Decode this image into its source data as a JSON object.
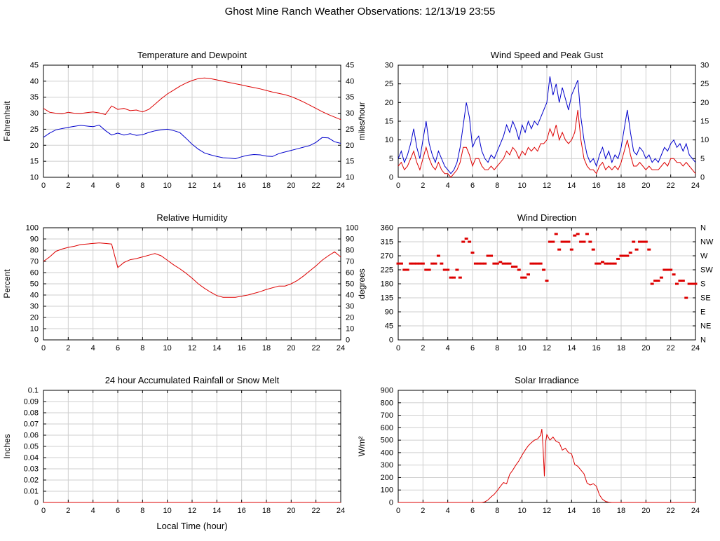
{
  "title": "Ghost Mine Ranch Weather Observations: 12/13/19 23:55",
  "colors": {
    "red": "#dd0000",
    "blue": "#0000cc",
    "grid": "#cfcfcf",
    "axis": "#000000"
  },
  "chart_data": [
    {
      "id": "temperature-dewpoint",
      "type": "line",
      "title": "Temperature and Dewpoint",
      "ylabel": "Fahrenheit",
      "ylim": [
        10,
        45
      ],
      "ytick": 5,
      "xlim": [
        0,
        24
      ],
      "xtick": 2,
      "mirror_right": true,
      "series": [
        {
          "name": "Temperature",
          "color": "red",
          "x_start": 0,
          "x_step": 0.5,
          "values": [
            31.5,
            30.3,
            30,
            29.8,
            30.3,
            30,
            29.9,
            30.2,
            30.4,
            30.1,
            29.6,
            32.3,
            31.2,
            31.5,
            30.8,
            31,
            30.4,
            31.2,
            32.8,
            34.5,
            36,
            37.2,
            38.4,
            39.4,
            40.2,
            40.8,
            41,
            40.8,
            40.4,
            40,
            39.6,
            39.2,
            38.8,
            38.4,
            38,
            37.6,
            37.1,
            36.6,
            36.2,
            35.8,
            35.2,
            34.4,
            33.5,
            32.5,
            31.5,
            30.5,
            29.6,
            28.8,
            28
          ]
        },
        {
          "name": "Dewpoint",
          "color": "blue",
          "x_start": 0,
          "x_step": 0.5,
          "values": [
            22.5,
            23.8,
            24.8,
            25.2,
            25.6,
            25.9,
            26.2,
            26,
            25.8,
            26.3,
            24.6,
            23.2,
            23.8,
            23.2,
            23.6,
            23.1,
            23.3,
            24,
            24.5,
            24.8,
            25,
            24.6,
            24,
            22.2,
            20.3,
            18.8,
            17.6,
            17,
            16.5,
            16.1,
            16,
            15.8,
            16.4,
            16.9,
            17.1,
            17,
            16.6,
            16.5,
            17.4,
            17.9,
            18.4,
            18.9,
            19.4,
            19.9,
            20.9,
            22.4,
            22.3,
            21.1,
            20.6
          ]
        }
      ]
    },
    {
      "id": "wind-speed-gust",
      "type": "line",
      "title": "Wind Speed and Peak Gust",
      "ylabel": "miles/hour",
      "ylim": [
        0,
        30
      ],
      "ytick": 5,
      "xlim": [
        0,
        24
      ],
      "xtick": 2,
      "mirror_right": true,
      "series": [
        {
          "name": "Peak Gust",
          "color": "blue",
          "x_start": 0,
          "x_step": 0.25,
          "values": [
            5,
            7,
            4,
            6,
            9,
            13,
            8,
            5,
            10,
            15,
            9,
            6,
            4,
            7,
            5,
            3,
            2,
            1,
            2,
            4,
            8,
            14,
            20,
            16,
            8,
            10,
            11,
            7,
            5,
            4,
            6,
            5,
            7,
            9,
            11,
            14,
            12,
            15,
            13,
            10,
            14,
            12,
            15,
            13,
            15,
            14,
            16,
            18,
            20,
            27,
            22,
            25,
            20,
            24,
            21,
            18,
            22,
            24,
            26,
            16,
            10,
            6,
            4,
            5,
            3,
            6,
            8,
            5,
            7,
            4,
            6,
            5,
            8,
            13,
            18,
            12,
            7,
            6,
            8,
            7,
            5,
            6,
            4,
            5,
            4,
            6,
            8,
            7,
            9,
            10,
            8,
            9,
            7,
            9,
            6,
            5,
            4
          ]
        },
        {
          "name": "Wind Speed",
          "color": "red",
          "x_start": 0,
          "x_step": 0.25,
          "values": [
            3,
            4,
            2,
            3,
            5,
            7,
            4,
            2,
            5,
            8,
            5,
            3,
            2,
            4,
            2,
            1,
            1,
            0,
            1,
            2,
            4,
            8,
            8,
            6,
            3,
            5,
            5,
            3,
            2,
            2,
            3,
            2,
            3,
            4,
            5,
            7,
            6,
            8,
            7,
            5,
            7,
            6,
            8,
            7,
            8,
            7,
            9,
            9,
            10,
            13,
            11,
            14,
            10,
            12,
            10,
            9,
            10,
            12,
            18,
            10,
            5,
            3,
            2,
            2,
            1,
            3,
            4,
            2,
            3,
            2,
            3,
            2,
            4,
            7,
            10,
            6,
            3,
            3,
            4,
            3,
            2,
            3,
            2,
            2,
            2,
            3,
            4,
            3,
            5,
            5,
            4,
            4,
            3,
            4,
            3,
            2,
            1
          ]
        }
      ]
    },
    {
      "id": "relative-humidity",
      "type": "line",
      "title": "Relative Humidity",
      "ylabel": "Percent",
      "ylim": [
        0,
        100
      ],
      "ytick": 10,
      "xlim": [
        0,
        24
      ],
      "xtick": 2,
      "mirror_right": true,
      "series": [
        {
          "name": "Relative Humidity",
          "color": "red",
          "x_start": 0,
          "x_step": 0.5,
          "values": [
            70,
            74,
            79,
            81,
            82.5,
            83.5,
            85,
            85.5,
            86,
            86.5,
            86,
            85.5,
            64.5,
            69,
            71.5,
            72.5,
            74,
            75.5,
            77,
            75,
            71,
            67,
            63.5,
            59.5,
            55,
            50,
            46,
            42.5,
            39.5,
            38,
            38,
            38,
            39,
            40,
            41.5,
            43,
            45,
            46.5,
            48,
            48,
            50,
            53,
            57,
            61.5,
            66,
            71,
            75,
            78.5,
            74
          ]
        }
      ]
    },
    {
      "id": "wind-direction",
      "type": "scatter",
      "title": "Wind Direction",
      "ylabel": "degrees",
      "ylim": [
        0,
        360
      ],
      "ytick": 45,
      "xlim": [
        0,
        24
      ],
      "xtick": 2,
      "right_labels": [
        "N",
        "NE",
        "E",
        "SE",
        "S",
        "SW",
        "W",
        "NW",
        "N"
      ],
      "series": [
        {
          "name": "Wind Direction",
          "color": "red",
          "style": "dots",
          "points": [
            [
              0,
              245
            ],
            [
              0.25,
              245
            ],
            [
              0.5,
              225
            ],
            [
              0.75,
              225
            ],
            [
              1,
              245
            ],
            [
              1.25,
              245
            ],
            [
              1.5,
              245
            ],
            [
              1.75,
              245
            ],
            [
              2,
              245
            ],
            [
              2.25,
              225
            ],
            [
              2.5,
              225
            ],
            [
              2.75,
              245
            ],
            [
              3,
              245
            ],
            [
              3.25,
              270
            ],
            [
              3.5,
              245
            ],
            [
              3.75,
              225
            ],
            [
              4,
              225
            ],
            [
              4.25,
              200
            ],
            [
              4.5,
              200
            ],
            [
              4.75,
              225
            ],
            [
              5,
              200
            ],
            [
              5.25,
              315
            ],
            [
              5.5,
              325
            ],
            [
              5.75,
              315
            ],
            [
              6,
              280
            ],
            [
              6.25,
              245
            ],
            [
              6.5,
              245
            ],
            [
              6.75,
              245
            ],
            [
              7,
              245
            ],
            [
              7.25,
              270
            ],
            [
              7.5,
              270
            ],
            [
              7.75,
              245
            ],
            [
              8,
              245
            ],
            [
              8.25,
              250
            ],
            [
              8.5,
              245
            ],
            [
              8.75,
              245
            ],
            [
              9,
              245
            ],
            [
              9.25,
              235
            ],
            [
              9.5,
              235
            ],
            [
              9.75,
              225
            ],
            [
              10,
              200
            ],
            [
              10.25,
              200
            ],
            [
              10.5,
              210
            ],
            [
              10.75,
              245
            ],
            [
              11,
              245
            ],
            [
              11.25,
              245
            ],
            [
              11.5,
              245
            ],
            [
              11.75,
              225
            ],
            [
              12,
              190
            ],
            [
              12.25,
              315
            ],
            [
              12.5,
              315
            ],
            [
              12.75,
              340
            ],
            [
              13,
              290
            ],
            [
              13.25,
              315
            ],
            [
              13.5,
              315
            ],
            [
              13.75,
              315
            ],
            [
              14,
              290
            ],
            [
              14.25,
              335
            ],
            [
              14.5,
              340
            ],
            [
              14.75,
              315
            ],
            [
              15,
              315
            ],
            [
              15.25,
              340
            ],
            [
              15.5,
              315
            ],
            [
              15.75,
              290
            ],
            [
              16,
              245
            ],
            [
              16.25,
              245
            ],
            [
              16.5,
              250
            ],
            [
              16.75,
              245
            ],
            [
              17,
              245
            ],
            [
              17.25,
              245
            ],
            [
              17.5,
              245
            ],
            [
              17.75,
              260
            ],
            [
              18,
              270
            ],
            [
              18.25,
              270
            ],
            [
              18.5,
              270
            ],
            [
              18.75,
              280
            ],
            [
              19,
              315
            ],
            [
              19.25,
              290
            ],
            [
              19.5,
              315
            ],
            [
              19.75,
              315
            ],
            [
              20,
              315
            ],
            [
              20.25,
              290
            ],
            [
              20.5,
              180
            ],
            [
              20.75,
              190
            ],
            [
              21,
              190
            ],
            [
              21.25,
              200
            ],
            [
              21.5,
              225
            ],
            [
              21.75,
              225
            ],
            [
              22,
              225
            ],
            [
              22.25,
              210
            ],
            [
              22.5,
              180
            ],
            [
              22.75,
              190
            ],
            [
              23,
              190
            ],
            [
              23.25,
              135
            ],
            [
              23.5,
              180
            ],
            [
              23.75,
              180
            ],
            [
              24,
              180
            ]
          ]
        }
      ]
    },
    {
      "id": "rainfall",
      "type": "line",
      "title": "24 hour Accumulated Rainfall or Snow Melt",
      "ylabel": "Inches",
      "xlabel": "Local Time (hour)",
      "ylim": [
        0,
        0.1
      ],
      "ytick": 0.01,
      "xlim": [
        0,
        24
      ],
      "xtick": 2,
      "mirror_right": false,
      "series": [
        {
          "name": "Accumulated Rainfall",
          "color": "red",
          "points": [
            [
              0,
              0
            ],
            [
              24,
              0
            ]
          ]
        }
      ]
    },
    {
      "id": "solar-irradiance",
      "type": "line",
      "title": "Solar Irradiance",
      "ylabel": "W/m²",
      "ylim": [
        0,
        900
      ],
      "ytick": 100,
      "xlim": [
        0,
        24
      ],
      "xtick": 2,
      "mirror_right": false,
      "series": [
        {
          "name": "Solar Irradiance",
          "color": "red",
          "points": [
            [
              0,
              0
            ],
            [
              6.75,
              0
            ],
            [
              7,
              5
            ],
            [
              7.25,
              20
            ],
            [
              7.5,
              45
            ],
            [
              7.75,
              65
            ],
            [
              8,
              95
            ],
            [
              8.25,
              130
            ],
            [
              8.5,
              160
            ],
            [
              8.75,
              150
            ],
            [
              9,
              225
            ],
            [
              9.25,
              260
            ],
            [
              9.5,
              300
            ],
            [
              9.75,
              335
            ],
            [
              10,
              380
            ],
            [
              10.25,
              420
            ],
            [
              10.5,
              455
            ],
            [
              10.75,
              480
            ],
            [
              11,
              500
            ],
            [
              11.25,
              510
            ],
            [
              11.5,
              540
            ],
            [
              11.6,
              590
            ],
            [
              11.7,
              430
            ],
            [
              11.8,
              210
            ],
            [
              11.9,
              480
            ],
            [
              12,
              545
            ],
            [
              12.25,
              500
            ],
            [
              12.5,
              525
            ],
            [
              12.75,
              490
            ],
            [
              13,
              480
            ],
            [
              13.25,
              420
            ],
            [
              13.5,
              435
            ],
            [
              13.75,
              400
            ],
            [
              14,
              390
            ],
            [
              14.25,
              305
            ],
            [
              14.5,
              290
            ],
            [
              14.75,
              260
            ],
            [
              15,
              230
            ],
            [
              15.25,
              155
            ],
            [
              15.5,
              140
            ],
            [
              15.75,
              150
            ],
            [
              16,
              130
            ],
            [
              16.25,
              60
            ],
            [
              16.5,
              25
            ],
            [
              16.75,
              8
            ],
            [
              17,
              2
            ],
            [
              17.25,
              0
            ],
            [
              24,
              0
            ]
          ]
        }
      ]
    }
  ]
}
